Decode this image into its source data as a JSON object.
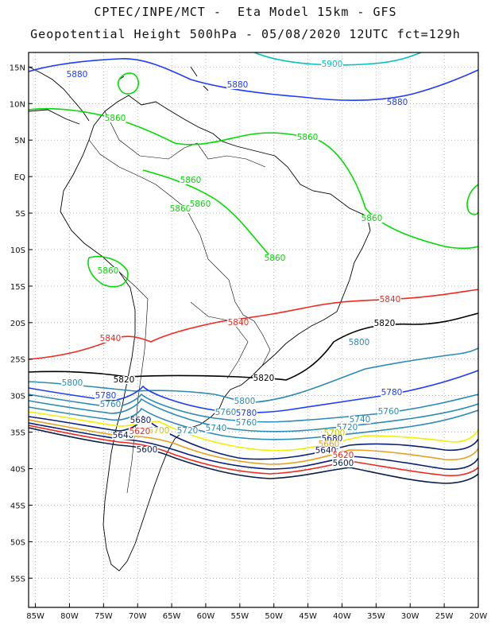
{
  "header": {
    "line1": "CPTEC/INPE/MCT -  Eta Model 15km - GFS",
    "line2": "Geopotential Height 500hPa - 05/08/2020 12UTC fct=129h"
  },
  "axes": {
    "lat_labels": [
      "15N",
      "10N",
      "5N",
      "EQ",
      "5S",
      "10S",
      "15S",
      "20S",
      "25S",
      "30S",
      "35S",
      "40S",
      "45S",
      "50S",
      "55S"
    ],
    "lon_labels": [
      "85W",
      "80W",
      "75W",
      "70W",
      "65W",
      "60W",
      "55W",
      "50W",
      "45W",
      "40W",
      "35W",
      "30W",
      "25W",
      "20W"
    ]
  },
  "map": {
    "projection": "cylindrical",
    "lon_range": [
      -86,
      -20
    ],
    "lat_range": [
      17,
      -59
    ],
    "grid": "dotted"
  },
  "contours": [
    {
      "level": "5900",
      "color": "#00c0c0"
    },
    {
      "level": "5880",
      "color": "#1e3cff"
    },
    {
      "level": "5860",
      "color": "#00dc00"
    },
    {
      "level": "5840",
      "color": "#f0281e"
    },
    {
      "level": "5820",
      "color": "#000000"
    },
    {
      "level": "5800",
      "color": "#2a8ab8"
    },
    {
      "level": "5780",
      "color": "#1e3cff"
    },
    {
      "level": "5760",
      "color": "#2a8ab8"
    },
    {
      "level": "5740",
      "color": "#2a8ab8"
    },
    {
      "level": "5720",
      "color": "#2a8ab8"
    },
    {
      "level": "5700",
      "color": "#f0f000"
    },
    {
      "level": "5680",
      "color": "#0a1e78"
    },
    {
      "level": "5660",
      "color": "#e6a01e"
    },
    {
      "level": "5640",
      "color": "#0a1e78"
    },
    {
      "level": "5620",
      "color": "#f0281e"
    },
    {
      "level": "5600",
      "color": "#0a1e50"
    }
  ]
}
